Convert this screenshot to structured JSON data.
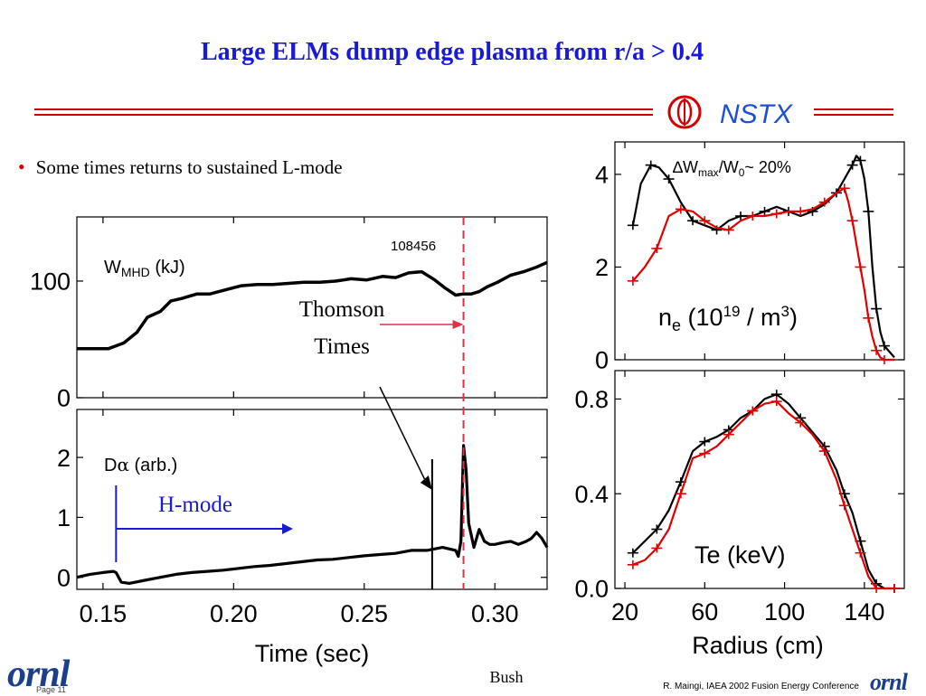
{
  "slide": {
    "title": "Large ELMs dump edge plasma from r/a > 0.4",
    "bullet": "Some times returns to sustained L-mode",
    "footer_author": "Bush",
    "footer_credit": "R. Maingi, IAEA 2002 Fusion Energy Conference",
    "logo_nstx": "NSTX",
    "logo_ornl": "ornl",
    "page_number": "Page 11"
  },
  "colors": {
    "title": "#1a1ad6",
    "bullet_dot": "#d40000",
    "rule_red": "#d40000",
    "nstx_logo": "#1a4fd6",
    "black_series": "#000000",
    "red_series": "#e00000",
    "hmode_arrow": "#1a1ad6",
    "thomson_arrow": "#e0304a",
    "thomson_line": "#e0304a"
  },
  "chart_data": [
    {
      "id": "wmhd",
      "type": "line",
      "shot_label": "108456",
      "label_main": "W",
      "label_sub": "MHD",
      "label_rest": " (kJ)",
      "xlim": [
        0.14,
        0.32
      ],
      "ylim": [
        0,
        155
      ],
      "yticks": [
        0,
        100
      ],
      "ytick_labels": [
        "0",
        "100"
      ],
      "series": [
        {
          "color": "#000000",
          "x": [
            0.14,
            0.152,
            0.158,
            0.163,
            0.167,
            0.172,
            0.176,
            0.18,
            0.186,
            0.191,
            0.196,
            0.203,
            0.209,
            0.215,
            0.221,
            0.227,
            0.233,
            0.239,
            0.245,
            0.251,
            0.257,
            0.262,
            0.267,
            0.272,
            0.277,
            0.281,
            0.285,
            0.288,
            0.291,
            0.294,
            0.297,
            0.301,
            0.306,
            0.311,
            0.316,
            0.32
          ],
          "values": [
            42,
            42,
            47,
            56,
            69,
            74,
            83,
            85,
            89,
            89,
            92,
            96,
            97,
            97,
            98,
            99,
            99,
            100,
            102,
            101,
            104,
            103,
            107,
            108,
            101,
            94,
            88,
            89,
            89,
            91,
            95,
            99,
            105,
            108,
            112,
            116
          ]
        }
      ],
      "annotation_thomson": [
        "Thomson",
        "Times"
      ]
    },
    {
      "id": "dalpha",
      "type": "line",
      "label_main": "D",
      "label_greek": "α",
      "label_rest": " (arb.)",
      "hmode_label": "H-mode",
      "xlim": [
        0.14,
        0.32
      ],
      "ylim": [
        -0.2,
        2.8
      ],
      "yticks": [
        0,
        1,
        2
      ],
      "ytick_labels": [
        "0",
        "1",
        "2"
      ],
      "xticks": [
        0.15,
        0.2,
        0.25,
        0.3
      ],
      "xtick_labels": [
        "0.15",
        "0.20",
        "0.25",
        "0.30"
      ],
      "xlabel": "Time (sec)",
      "markers": {
        "hmode_start": 0.155,
        "thomson_black": 0.276,
        "thomson_red": 0.288
      },
      "series": [
        {
          "color": "#000000",
          "x": [
            0.14,
            0.145,
            0.15,
            0.154,
            0.155,
            0.156,
            0.157,
            0.16,
            0.166,
            0.172,
            0.178,
            0.184,
            0.19,
            0.196,
            0.202,
            0.208,
            0.214,
            0.22,
            0.226,
            0.232,
            0.238,
            0.244,
            0.25,
            0.256,
            0.262,
            0.268,
            0.274,
            0.28,
            0.285,
            0.286,
            0.287,
            0.288,
            0.289,
            0.29,
            0.291,
            0.292,
            0.293,
            0.294,
            0.295,
            0.296,
            0.298,
            0.3,
            0.303,
            0.306,
            0.309,
            0.312,
            0.314,
            0.316,
            0.318,
            0.32
          ],
          "values": [
            0.0,
            0.05,
            0.08,
            0.1,
            0.08,
            0.0,
            -0.08,
            -0.1,
            -0.05,
            0.0,
            0.05,
            0.08,
            0.1,
            0.12,
            0.15,
            0.18,
            0.2,
            0.23,
            0.26,
            0.29,
            0.3,
            0.33,
            0.36,
            0.38,
            0.4,
            0.45,
            0.45,
            0.5,
            0.45,
            0.35,
            0.6,
            2.2,
            1.8,
            0.9,
            0.7,
            0.5,
            0.65,
            0.8,
            0.7,
            0.6,
            0.55,
            0.55,
            0.58,
            0.6,
            0.55,
            0.6,
            0.65,
            0.75,
            0.65,
            0.5
          ]
        }
      ]
    },
    {
      "id": "ne",
      "type": "line",
      "title_prefix": "∆W",
      "title_sub1": "max",
      "title_mid": "/W",
      "title_sub2": "0",
      "title_suffix": "~ 20%",
      "label_main": "n",
      "label_sub": "e",
      "label_mid": " (10",
      "label_sup": "19",
      "label_end1": " / m",
      "label_sup2": "3",
      "label_end2": ")",
      "xlim": [
        15,
        160
      ],
      "ylim": [
        0,
        4.7
      ],
      "yticks": [
        0,
        2,
        4
      ],
      "ytick_labels": [
        "0",
        "2",
        "4"
      ],
      "series": [
        {
          "color": "#000000",
          "x": [
            24,
            28,
            33,
            37,
            42,
            48,
            54,
            60,
            66,
            72,
            78,
            84,
            90,
            96,
            102,
            108,
            114,
            120,
            126,
            130,
            134,
            136,
            138,
            140,
            142,
            144,
            146,
            148,
            150,
            155
          ],
          "values": [
            2.9,
            3.8,
            4.2,
            4.15,
            3.9,
            3.4,
            3.0,
            2.9,
            2.8,
            3.0,
            3.1,
            3.1,
            3.2,
            3.3,
            3.2,
            3.1,
            3.2,
            3.35,
            3.6,
            3.9,
            4.2,
            4.4,
            4.3,
            3.9,
            3.2,
            2.0,
            1.1,
            0.6,
            0.3,
            0.05
          ]
        },
        {
          "color": "#e00000",
          "x": [
            24,
            30,
            36,
            42,
            48,
            54,
            60,
            66,
            72,
            78,
            84,
            90,
            96,
            102,
            108,
            114,
            120,
            126,
            130,
            132,
            134,
            136,
            138,
            140,
            142,
            144,
            146,
            148,
            150,
            155
          ],
          "values": [
            1.7,
            2.0,
            2.4,
            3.1,
            3.25,
            3.2,
            3.0,
            2.85,
            2.8,
            3.0,
            3.1,
            3.1,
            3.15,
            3.2,
            3.2,
            3.25,
            3.4,
            3.6,
            3.7,
            3.4,
            3.0,
            2.5,
            2.0,
            1.5,
            0.9,
            0.5,
            0.2,
            0.05,
            0.0,
            0.0
          ]
        }
      ]
    },
    {
      "id": "te",
      "type": "line",
      "label_text": "Te (keV)",
      "xlim": [
        15,
        160
      ],
      "ylim": [
        0,
        0.92
      ],
      "yticks": [
        0,
        0.4,
        0.8
      ],
      "ytick_labels": [
        "0.0",
        "0.4",
        "0.8"
      ],
      "xticks": [
        20,
        60,
        100,
        140
      ],
      "xtick_labels": [
        "20",
        "60",
        "100",
        "140"
      ],
      "xlabel": "Radius (cm)",
      "series": [
        {
          "color": "#000000",
          "x": [
            24,
            30,
            36,
            42,
            48,
            54,
            60,
            66,
            72,
            78,
            84,
            90,
            96,
            102,
            108,
            114,
            120,
            126,
            130,
            134,
            138,
            142,
            146,
            150,
            155
          ],
          "values": [
            0.15,
            0.2,
            0.25,
            0.33,
            0.45,
            0.58,
            0.62,
            0.64,
            0.67,
            0.72,
            0.75,
            0.8,
            0.82,
            0.78,
            0.72,
            0.66,
            0.6,
            0.5,
            0.4,
            0.32,
            0.2,
            0.08,
            0.02,
            0.0,
            0.0
          ]
        },
        {
          "color": "#e00000",
          "x": [
            24,
            30,
            36,
            42,
            48,
            54,
            60,
            66,
            72,
            78,
            84,
            90,
            96,
            102,
            108,
            114,
            120,
            126,
            130,
            134,
            138,
            142,
            146,
            150,
            155
          ],
          "values": [
            0.1,
            0.12,
            0.17,
            0.25,
            0.4,
            0.55,
            0.57,
            0.6,
            0.65,
            0.7,
            0.75,
            0.78,
            0.79,
            0.74,
            0.7,
            0.65,
            0.58,
            0.46,
            0.35,
            0.25,
            0.15,
            0.05,
            0.0,
            0.0,
            0.0
          ]
        }
      ]
    }
  ]
}
